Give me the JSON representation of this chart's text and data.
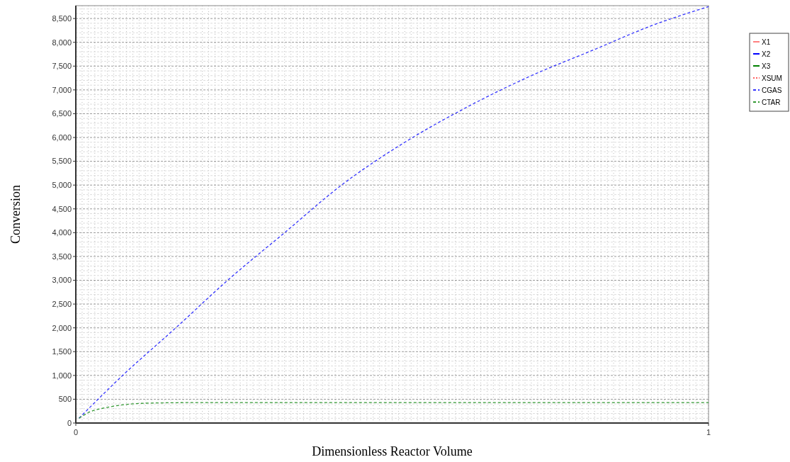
{
  "chart_data": {
    "type": "line",
    "xlabel": "Dimensionless Reactor Volume",
    "ylabel": "Conversion",
    "xlim": [
      0,
      1
    ],
    "xticks": [
      0,
      1
    ],
    "ylim": [
      0,
      8770
    ],
    "yticks": [
      0,
      500,
      {
        "value": 1000,
        "label": "1,000"
      },
      {
        "value": 1500,
        "label": "1,500"
      },
      {
        "value": 2000,
        "label": "2,000"
      },
      {
        "value": 2500,
        "label": "2,500"
      },
      {
        "value": 3000,
        "label": "3,000"
      },
      {
        "value": 3500,
        "label": "3,500"
      },
      {
        "value": 4000,
        "label": "4,000"
      },
      {
        "value": 4500,
        "label": "4,500"
      },
      {
        "value": 5000,
        "label": "5,000"
      },
      {
        "value": 5500,
        "label": "5,500"
      },
      {
        "value": 6000,
        "label": "6,000"
      },
      {
        "value": 6500,
        "label": "6,500"
      },
      {
        "value": 7000,
        "label": "7,000"
      },
      {
        "value": 7500,
        "label": "7,500"
      },
      {
        "value": 8000,
        "label": "8,000"
      },
      {
        "value": 8500,
        "label": "8,500"
      }
    ],
    "grid": true,
    "legend": "right",
    "series": [
      {
        "name": "X1",
        "color": "#ff8080",
        "line_style": "solid"
      },
      {
        "name": "X2",
        "color": "#0000ff",
        "line_style": "solid"
      },
      {
        "name": "X3",
        "color": "#008000",
        "line_style": "solid"
      },
      {
        "name": "XSUM",
        "color": "#ff6060",
        "line_style": "dotted"
      },
      {
        "name": "CGAS",
        "color": "#3333ff",
        "line_style": "dashed",
        "x": [
          0.005,
          0.074,
          0.158,
          0.24,
          0.33,
          0.42,
          0.52,
          0.62,
          0.72,
          0.82,
          0.91,
          1
        ],
        "values": [
          100,
          1000,
          2000,
          3000,
          4000,
          5000,
          5900,
          6650,
          7300,
          7850,
          8350,
          8750
        ]
      },
      {
        "name": "CTAR",
        "color": "#339933",
        "line_style": "dashed",
        "x": [
          0.005,
          0.02,
          0.05,
          0.08,
          0.12,
          0.2,
          0.4,
          0.7,
          1
        ],
        "values": [
          100,
          220,
          330,
          390,
          420,
          430,
          430,
          430,
          430
        ]
      }
    ]
  }
}
